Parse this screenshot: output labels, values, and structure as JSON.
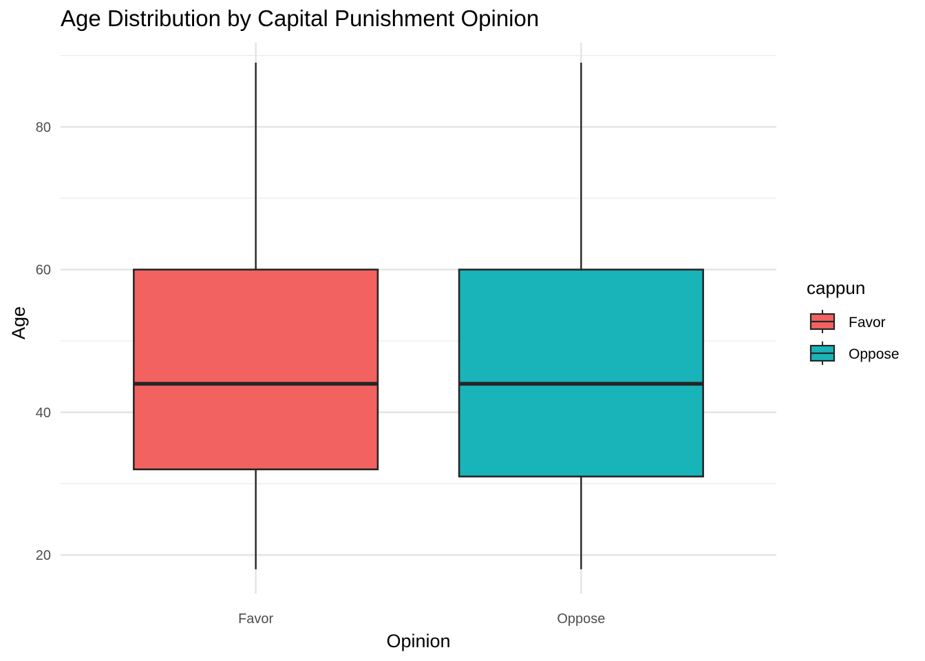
{
  "chart_data": {
    "type": "boxplot",
    "title": "Age Distribution by Capital Punishment Opinion",
    "xlabel": "Opinion",
    "ylabel": "Age",
    "categories": [
      "Favor",
      "Oppose"
    ],
    "boxes": [
      {
        "category": "Favor",
        "min": 18,
        "q1": 32,
        "median": 44,
        "q3": 60,
        "max": 89,
        "color": "#F26260"
      },
      {
        "category": "Oppose",
        "min": 18,
        "q1": 31,
        "median": 44,
        "q3": 60,
        "max": 89,
        "color": "#19B4B9"
      }
    ],
    "ylim": [
      14.6,
      91.8
    ],
    "yticks": [
      20,
      40,
      60,
      80
    ],
    "grid": true,
    "legend": {
      "title": "cappun",
      "position": "right",
      "entries": [
        {
          "label": "Favor",
          "color": "#F26260"
        },
        {
          "label": "Oppose",
          "color": "#19B4B9"
        }
      ]
    }
  }
}
